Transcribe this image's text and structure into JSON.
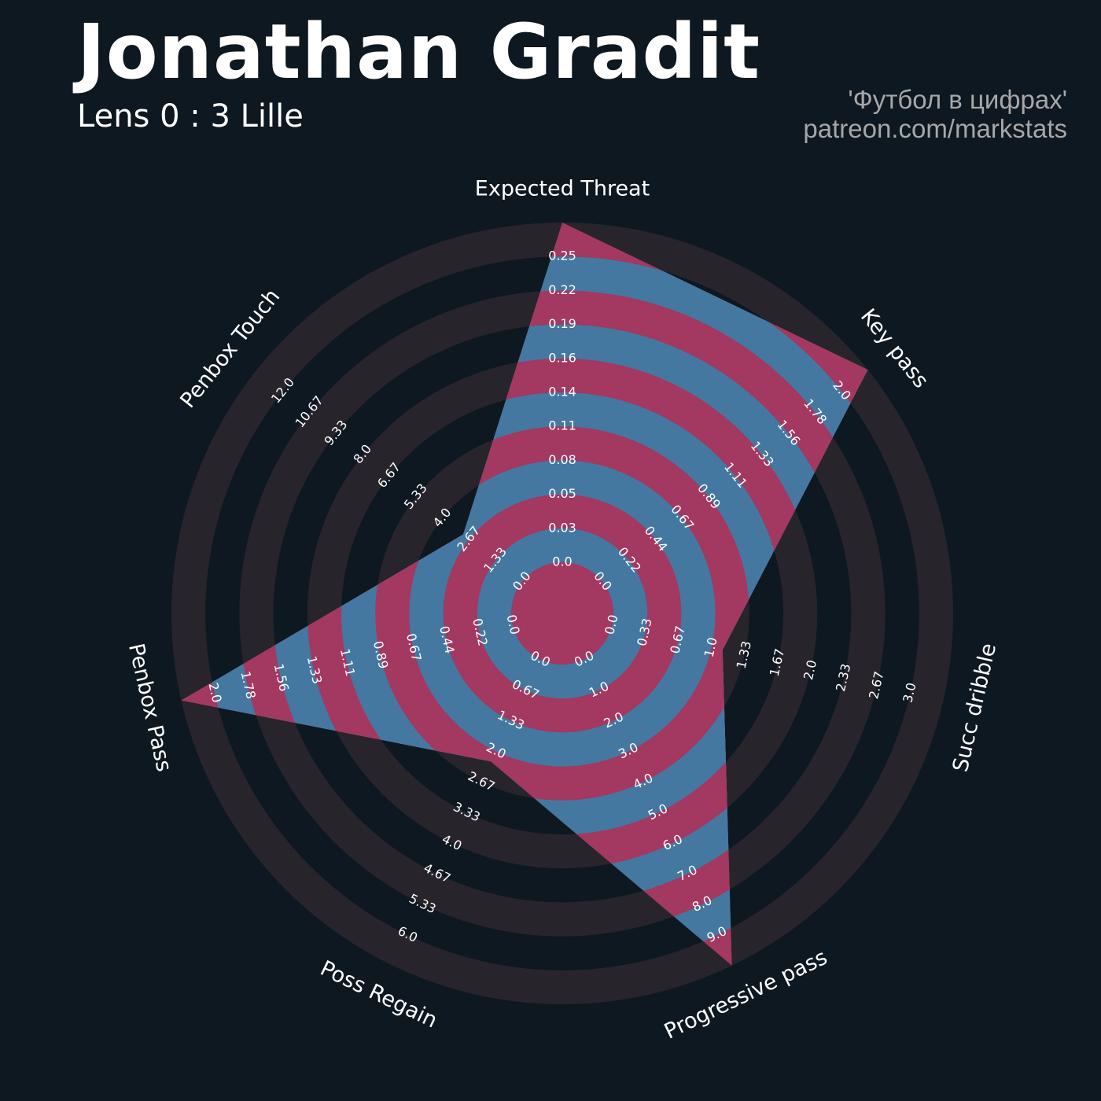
{
  "title": "Jonathan Gradit",
  "subtitle": "Lens 0 : 3 Lille",
  "credits": {
    "line1": "'Футбол в цифрах'",
    "line2": "patreon.com/markstats"
  },
  "colors": {
    "background": "#0e1820",
    "ring_dark": "#28242b",
    "fill_blue": "#4478a0",
    "fill_pink": "#a33861"
  },
  "chart_data": {
    "type": "radar",
    "title": "",
    "rings": 10,
    "axes": [
      {
        "label": "Expected Threat",
        "ticks": [
          "0.0",
          "0.03",
          "0.05",
          "0.08",
          "0.11",
          "0.14",
          "0.16",
          "0.19",
          "0.22",
          "0.25"
        ],
        "min": 0.0,
        "max": 0.25,
        "value": 0.25
      },
      {
        "label": "Key pass",
        "ticks": [
          "0.0",
          "0.22",
          "0.44",
          "0.67",
          "0.89",
          "1.11",
          "1.33",
          "1.56",
          "1.78",
          "2.0"
        ],
        "min": 0.0,
        "max": 2.0,
        "value": 2.0
      },
      {
        "label": "Succ dribble",
        "ticks": [
          "0.0",
          "0.33",
          "0.67",
          "1.0",
          "1.33",
          "1.67",
          "2.0",
          "2.33",
          "2.67",
          "3.0"
        ],
        "min": 0.0,
        "max": 3.0,
        "value": 1.0
      },
      {
        "label": "Progressive pass",
        "ticks": [
          "0.0",
          "1.0",
          "2.0",
          "3.0",
          "4.0",
          "5.0",
          "6.0",
          "7.0",
          "8.0",
          "9.0"
        ],
        "min": 0.0,
        "max": 9.0,
        "value": 9.0
      },
      {
        "label": "Poss Regain",
        "ticks": [
          "0.0",
          "0.67",
          "1.33",
          "2.0",
          "2.67",
          "3.33",
          "4.0",
          "4.67",
          "5.33",
          "6.0"
        ],
        "min": 0.0,
        "max": 6.0,
        "value": 2.0
      },
      {
        "label": "Penbox Pass",
        "ticks": [
          "0.0",
          "0.22",
          "0.44",
          "0.67",
          "0.89",
          "1.11",
          "1.33",
          "1.56",
          "1.78",
          "2.0"
        ],
        "min": 0.0,
        "max": 2.0,
        "value": 2.0
      },
      {
        "label": "Penbox Touch",
        "ticks": [
          "0.0",
          "1.33",
          "2.67",
          "4.0",
          "5.33",
          "6.67",
          "8.0",
          "9.33",
          "10.67",
          "12.0"
        ],
        "min": 0.0,
        "max": 12.0,
        "value": 2.67
      }
    ]
  }
}
